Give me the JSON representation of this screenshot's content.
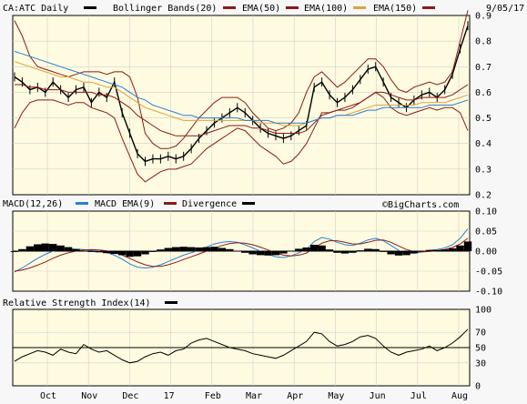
{
  "header": {
    "symbol_label": "CA:ATC Daily",
    "date": "9/05/17",
    "legend": [
      {
        "name": "Bollinger Bands(20)",
        "color": "#8b1a1a"
      },
      {
        "name": "EMA(50)",
        "color": "#8b1a1a"
      },
      {
        "name": "EMA(100)",
        "color": "#d9a441"
      },
      {
        "name": "EMA(150)",
        "color": "#2a7fd4"
      }
    ]
  },
  "months": [
    "Oct",
    "Nov",
    "Dec",
    "17",
    "Feb",
    "Mar",
    "Apr",
    "May",
    "Jun",
    "Jul",
    "Aug"
  ],
  "chart_data": [
    {
      "type": "line",
      "name": "price",
      "ylim": [
        0.2,
        0.9
      ],
      "yticks": [
        "0.9",
        "0.8",
        "0.7",
        "0.6",
        "0.5",
        "0.4",
        "0.3",
        "0.2"
      ],
      "series": [
        {
          "name": "CA:ATC Daily",
          "color": "#000000",
          "values": [
            0.66,
            0.64,
            0.61,
            0.62,
            0.6,
            0.64,
            0.61,
            0.58,
            0.61,
            0.62,
            0.56,
            0.6,
            0.58,
            0.64,
            0.52,
            0.44,
            0.36,
            0.33,
            0.34,
            0.34,
            0.35,
            0.34,
            0.35,
            0.38,
            0.42,
            0.45,
            0.48,
            0.5,
            0.52,
            0.54,
            0.52,
            0.49,
            0.46,
            0.44,
            0.43,
            0.42,
            0.43,
            0.45,
            0.47,
            0.62,
            0.64,
            0.59,
            0.56,
            0.58,
            0.61,
            0.65,
            0.69,
            0.7,
            0.64,
            0.58,
            0.56,
            0.54,
            0.57,
            0.59,
            0.6,
            0.58,
            0.61,
            0.67,
            0.77,
            0.86
          ]
        },
        {
          "name": "Bollinger Upper",
          "color": "#8b1a1a",
          "values": [
            0.88,
            0.82,
            0.74,
            0.7,
            0.69,
            0.68,
            0.67,
            0.66,
            0.67,
            0.68,
            0.68,
            0.68,
            0.67,
            0.68,
            0.68,
            0.66,
            0.58,
            0.44,
            0.4,
            0.38,
            0.38,
            0.39,
            0.42,
            0.46,
            0.5,
            0.53,
            0.56,
            0.58,
            0.58,
            0.58,
            0.56,
            0.52,
            0.49,
            0.46,
            0.45,
            0.46,
            0.48,
            0.52,
            0.6,
            0.66,
            0.68,
            0.65,
            0.62,
            0.64,
            0.67,
            0.7,
            0.73,
            0.73,
            0.7,
            0.65,
            0.61,
            0.6,
            0.62,
            0.63,
            0.64,
            0.63,
            0.64,
            0.68,
            0.8,
            0.92
          ]
        },
        {
          "name": "Bollinger Lower",
          "color": "#8b1a1a",
          "values": [
            0.46,
            0.52,
            0.56,
            0.57,
            0.57,
            0.57,
            0.56,
            0.55,
            0.56,
            0.56,
            0.54,
            0.53,
            0.52,
            0.5,
            0.42,
            0.35,
            0.28,
            0.25,
            0.27,
            0.29,
            0.3,
            0.3,
            0.31,
            0.32,
            0.35,
            0.38,
            0.4,
            0.42,
            0.44,
            0.46,
            0.45,
            0.42,
            0.39,
            0.37,
            0.35,
            0.32,
            0.33,
            0.36,
            0.4,
            0.46,
            0.52,
            0.52,
            0.53,
            0.54,
            0.55,
            0.56,
            0.58,
            0.6,
            0.58,
            0.54,
            0.52,
            0.51,
            0.52,
            0.53,
            0.54,
            0.53,
            0.54,
            0.54,
            0.52,
            0.45
          ]
        },
        {
          "name": "EMA(50)",
          "color": "#8b1a1a",
          "values": [
            0.63,
            0.63,
            0.62,
            0.62,
            0.61,
            0.61,
            0.61,
            0.6,
            0.6,
            0.6,
            0.6,
            0.59,
            0.59,
            0.58,
            0.56,
            0.54,
            0.51,
            0.49,
            0.47,
            0.45,
            0.44,
            0.43,
            0.43,
            0.43,
            0.43,
            0.44,
            0.45,
            0.46,
            0.47,
            0.47,
            0.47,
            0.46,
            0.46,
            0.45,
            0.44,
            0.44,
            0.44,
            0.44,
            0.45,
            0.48,
            0.51,
            0.52,
            0.53,
            0.53,
            0.54,
            0.56,
            0.58,
            0.6,
            0.6,
            0.59,
            0.58,
            0.57,
            0.57,
            0.58,
            0.58,
            0.58,
            0.58,
            0.59,
            0.61,
            0.63
          ]
        },
        {
          "name": "EMA(100)",
          "color": "#d9a441",
          "values": [
            0.72,
            0.71,
            0.7,
            0.69,
            0.68,
            0.67,
            0.66,
            0.66,
            0.65,
            0.64,
            0.64,
            0.63,
            0.62,
            0.62,
            0.6,
            0.58,
            0.56,
            0.54,
            0.53,
            0.52,
            0.51,
            0.5,
            0.49,
            0.49,
            0.49,
            0.49,
            0.49,
            0.49,
            0.49,
            0.49,
            0.49,
            0.49,
            0.48,
            0.48,
            0.48,
            0.47,
            0.47,
            0.47,
            0.48,
            0.49,
            0.5,
            0.5,
            0.51,
            0.51,
            0.52,
            0.53,
            0.54,
            0.55,
            0.55,
            0.55,
            0.55,
            0.55,
            0.55,
            0.56,
            0.56,
            0.56,
            0.56,
            0.57,
            0.58,
            0.59
          ]
        },
        {
          "name": "EMA(150)",
          "color": "#2a7fd4",
          "values": [
            0.76,
            0.75,
            0.74,
            0.73,
            0.72,
            0.71,
            0.7,
            0.69,
            0.68,
            0.67,
            0.66,
            0.65,
            0.64,
            0.63,
            0.62,
            0.6,
            0.58,
            0.57,
            0.55,
            0.54,
            0.53,
            0.52,
            0.51,
            0.51,
            0.5,
            0.5,
            0.5,
            0.5,
            0.5,
            0.5,
            0.49,
            0.49,
            0.49,
            0.49,
            0.48,
            0.48,
            0.48,
            0.48,
            0.48,
            0.49,
            0.5,
            0.5,
            0.51,
            0.51,
            0.51,
            0.52,
            0.53,
            0.53,
            0.54,
            0.54,
            0.54,
            0.54,
            0.54,
            0.54,
            0.55,
            0.55,
            0.55,
            0.55,
            0.56,
            0.57
          ]
        }
      ]
    },
    {
      "type": "line",
      "name": "macd",
      "title": "MACD(12,26)",
      "source_label": "©BigCharts.com",
      "ylim": [
        -0.1,
        0.1
      ],
      "yticks": [
        "0.10",
        "0.05",
        "0.00",
        "-0.05",
        "-0.10"
      ],
      "legend": [
        {
          "name": "MACD(12,26)",
          "color": "#000000"
        },
        {
          "name": "MACD EMA(9)",
          "color": "#2a7fd4"
        },
        {
          "name": "Divergence",
          "color": "#8b1a1a"
        }
      ],
      "series": [
        {
          "name": "MACD(12,26)",
          "color": "#2a7fd4",
          "values": [
            -0.052,
            -0.042,
            -0.03,
            -0.018,
            -0.008,
            0.0,
            0.004,
            0.006,
            0.005,
            0.004,
            0.002,
            0.0,
            -0.004,
            -0.01,
            -0.02,
            -0.032,
            -0.04,
            -0.042,
            -0.04,
            -0.034,
            -0.026,
            -0.018,
            -0.01,
            -0.004,
            0.002,
            0.01,
            0.018,
            0.022,
            0.024,
            0.022,
            0.016,
            0.008,
            0.0,
            -0.008,
            -0.014,
            -0.016,
            -0.012,
            -0.004,
            0.004,
            0.024,
            0.034,
            0.03,
            0.022,
            0.016,
            0.014,
            0.02,
            0.028,
            0.032,
            0.026,
            0.014,
            0.002,
            -0.006,
            -0.006,
            -0.002,
            0.002,
            0.004,
            0.008,
            0.016,
            0.032,
            0.056
          ]
        },
        {
          "name": "MACD EMA(9)",
          "color": "#8b1a1a",
          "values": [
            -0.05,
            -0.047,
            -0.042,
            -0.035,
            -0.027,
            -0.018,
            -0.01,
            -0.004,
            0.0,
            0.003,
            0.004,
            0.003,
            0.001,
            -0.003,
            -0.01,
            -0.018,
            -0.027,
            -0.034,
            -0.038,
            -0.038,
            -0.034,
            -0.028,
            -0.021,
            -0.014,
            -0.007,
            0.0,
            0.007,
            0.014,
            0.019,
            0.021,
            0.02,
            0.016,
            0.01,
            0.003,
            -0.004,
            -0.01,
            -0.012,
            -0.01,
            -0.005,
            0.008,
            0.02,
            0.026,
            0.026,
            0.022,
            0.018,
            0.018,
            0.022,
            0.027,
            0.028,
            0.022,
            0.013,
            0.004,
            -0.001,
            -0.002,
            -0.001,
            0.001,
            0.004,
            0.009,
            0.018,
            0.032
          ]
        }
      ]
    },
    {
      "type": "line",
      "name": "rsi",
      "title": "Relative Strength Index(14)",
      "ylim": [
        0,
        100
      ],
      "yticks": [
        "100",
        "70",
        "50",
        "30",
        "0"
      ],
      "series": [
        {
          "name": "Relative Strength Index(14)",
          "color": "#000000",
          "values": [
            32,
            38,
            42,
            46,
            44,
            40,
            48,
            44,
            42,
            54,
            48,
            44,
            46,
            40,
            34,
            30,
            32,
            38,
            42,
            44,
            40,
            46,
            48,
            56,
            60,
            62,
            58,
            54,
            50,
            48,
            46,
            42,
            40,
            38,
            36,
            40,
            46,
            52,
            58,
            70,
            68,
            58,
            52,
            54,
            58,
            64,
            66,
            62,
            52,
            44,
            40,
            44,
            46,
            48,
            52,
            46,
            50,
            56,
            64,
            74
          ]
        }
      ]
    }
  ]
}
